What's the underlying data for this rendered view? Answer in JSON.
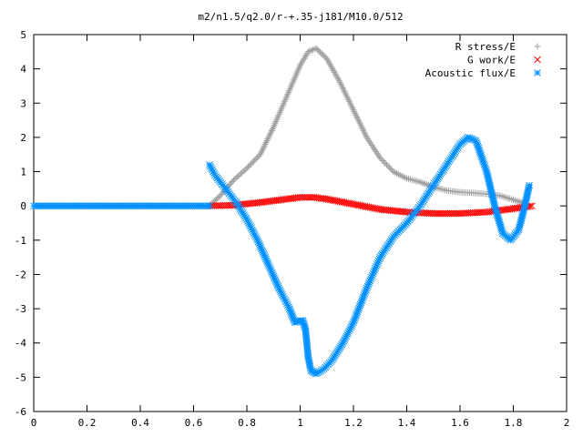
{
  "chart_data": {
    "type": "scatter",
    "title": "m2/n1.5/q2.0/r-+.35-j181/M10.0/512",
    "xlabel": "",
    "ylabel": "",
    "xlim": [
      0,
      2
    ],
    "ylim": [
      -6,
      5
    ],
    "xticks": [
      0,
      0.2,
      0.4,
      0.6,
      0.8,
      1,
      1.2,
      1.4,
      1.6,
      1.8,
      2
    ],
    "xtick_labels": [
      "0",
      "0.2",
      "0.4",
      "0.6",
      "0.8",
      "1",
      "1.2",
      "1.4",
      "1.6",
      "1.8",
      "2"
    ],
    "yticks": [
      5,
      4,
      3,
      2,
      1,
      0,
      -1,
      -2,
      -3,
      -4,
      -5,
      -6
    ],
    "ytick_labels": [
      "5",
      "4",
      "3",
      "2",
      "1",
      "0",
      "-1",
      "-2",
      "-3",
      "-4",
      "-5",
      "-6"
    ],
    "grid": false,
    "legend_position": "top-right",
    "series": [
      {
        "name": "R stress/E",
        "marker": "plus",
        "color": "#a0a0a0",
        "points": [
          [
            0.66,
            0.0
          ],
          [
            0.7,
            0.3
          ],
          [
            0.75,
            0.75
          ],
          [
            0.8,
            1.1
          ],
          [
            0.85,
            1.5
          ],
          [
            0.9,
            2.3
          ],
          [
            0.95,
            3.2
          ],
          [
            1.0,
            4.1
          ],
          [
            1.03,
            4.5
          ],
          [
            1.06,
            4.6
          ],
          [
            1.1,
            4.3
          ],
          [
            1.15,
            3.6
          ],
          [
            1.2,
            2.8
          ],
          [
            1.25,
            2.0
          ],
          [
            1.3,
            1.4
          ],
          [
            1.35,
            1.0
          ],
          [
            1.4,
            0.8
          ],
          [
            1.45,
            0.7
          ],
          [
            1.5,
            0.55
          ],
          [
            1.55,
            0.45
          ],
          [
            1.6,
            0.4
          ],
          [
            1.65,
            0.38
          ],
          [
            1.7,
            0.35
          ],
          [
            1.75,
            0.3
          ],
          [
            1.8,
            0.18
          ],
          [
            1.85,
            0.05
          ]
        ]
      },
      {
        "name": "G work/E",
        "marker": "cross",
        "color": "#ff0000",
        "points": [
          [
            0.66,
            0.0
          ],
          [
            0.75,
            0.02
          ],
          [
            0.85,
            0.1
          ],
          [
            0.95,
            0.2
          ],
          [
            1.0,
            0.25
          ],
          [
            1.05,
            0.25
          ],
          [
            1.1,
            0.2
          ],
          [
            1.2,
            0.05
          ],
          [
            1.3,
            -0.1
          ],
          [
            1.4,
            -0.18
          ],
          [
            1.5,
            -0.22
          ],
          [
            1.6,
            -0.22
          ],
          [
            1.7,
            -0.18
          ],
          [
            1.8,
            -0.08
          ],
          [
            1.87,
            0.0
          ]
        ]
      },
      {
        "name": "Acoustic flux/E",
        "marker": "star",
        "color": "#0090ff",
        "points": [
          [
            0.66,
            1.2
          ],
          [
            0.68,
            0.9
          ],
          [
            0.72,
            0.5
          ],
          [
            0.76,
            0.1
          ],
          [
            0.8,
            -0.4
          ],
          [
            0.84,
            -1.0
          ],
          [
            0.88,
            -1.7
          ],
          [
            0.92,
            -2.4
          ],
          [
            0.96,
            -3.0
          ],
          [
            0.98,
            -3.4
          ],
          [
            1.0,
            -3.35
          ],
          [
            1.01,
            -3.35
          ],
          [
            1.02,
            -3.6
          ],
          [
            1.025,
            -4.0
          ],
          [
            1.03,
            -4.4
          ],
          [
            1.04,
            -4.8
          ],
          [
            1.06,
            -4.9
          ],
          [
            1.09,
            -4.75
          ],
          [
            1.12,
            -4.5
          ],
          [
            1.16,
            -4.0
          ],
          [
            1.2,
            -3.4
          ],
          [
            1.25,
            -2.4
          ],
          [
            1.3,
            -1.5
          ],
          [
            1.35,
            -0.9
          ],
          [
            1.4,
            -0.5
          ],
          [
            1.45,
            0.0
          ],
          [
            1.5,
            0.6
          ],
          [
            1.55,
            1.2
          ],
          [
            1.6,
            1.8
          ],
          [
            1.63,
            2.0
          ],
          [
            1.66,
            1.9
          ],
          [
            1.7,
            1.0
          ],
          [
            1.73,
            0.0
          ],
          [
            1.76,
            -0.8
          ],
          [
            1.79,
            -1.0
          ],
          [
            1.82,
            -0.7
          ],
          [
            1.84,
            -0.1
          ],
          [
            1.86,
            0.6
          ]
        ]
      },
      {
        "name": "",
        "marker": "star",
        "color": "#0090ff",
        "points": [
          [
            0.0,
            0.0
          ],
          [
            0.1,
            0.0
          ],
          [
            0.2,
            0.0
          ],
          [
            0.3,
            0.0
          ],
          [
            0.4,
            0.0
          ],
          [
            0.5,
            0.0
          ],
          [
            0.6,
            0.0
          ],
          [
            0.66,
            0.0
          ]
        ]
      }
    ]
  }
}
